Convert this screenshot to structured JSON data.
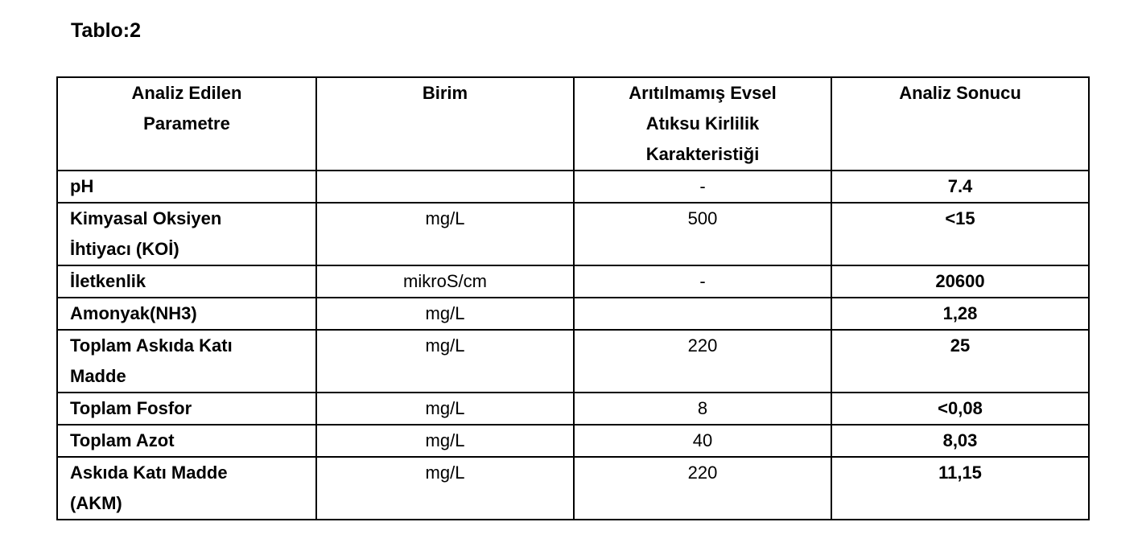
{
  "title": "Tablo:2",
  "table": {
    "headers": [
      "Analiz Edilen\nParametre",
      "Birim",
      "Arıtılmamış Evsel\nAtıksu Kirlilik\nKarakteristiği",
      "Analiz Sonucu"
    ],
    "rows": [
      {
        "parameter": "pH",
        "unit": "",
        "characteristic": "-",
        "result": "7.4"
      },
      {
        "parameter": "Kimyasal Oksiyen\nİhtiyacı (KOİ)",
        "unit": "mg/L",
        "characteristic": "500",
        "result": "<15"
      },
      {
        "parameter": "İletkenlik",
        "unit": "mikroS/cm",
        "characteristic": "-",
        "result": "20600"
      },
      {
        "parameter": "Amonyak(NH3)",
        "unit": "mg/L",
        "characteristic": "",
        "result": "1,28"
      },
      {
        "parameter": "Toplam Askıda Katı\nMadde",
        "unit": "mg/L",
        "characteristic": "220",
        "result": "25"
      },
      {
        "parameter": "Toplam Fosfor",
        "unit": "mg/L",
        "characteristic": "8",
        "result": "<0,08"
      },
      {
        "parameter": "Toplam Azot",
        "unit": "mg/L",
        "characteristic": "40",
        "result": "8,03"
      },
      {
        "parameter": "Askıda Katı Madde\n(AKM)",
        "unit": "mg/L",
        "characteristic": "220",
        "result": "11,15"
      }
    ],
    "text_color": "#000000",
    "border_color": "#000000",
    "background_color": "#ffffff"
  }
}
